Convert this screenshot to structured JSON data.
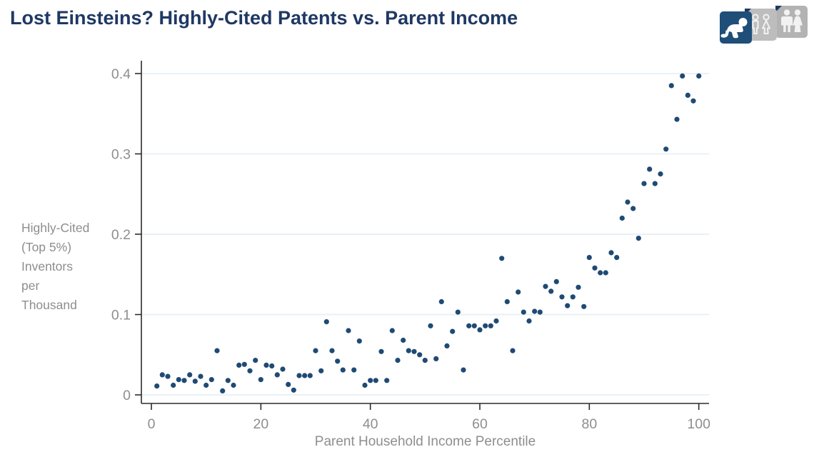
{
  "header": {
    "title": "Lost Einsteins? Highly-Cited Patents vs. Parent Income"
  },
  "toolbar": {
    "buttons": [
      {
        "id": "baby",
        "icon": "baby-icon",
        "selected": true
      },
      {
        "id": "children",
        "icon": "children-icon",
        "selected": false
      },
      {
        "id": "adults",
        "icon": "adults-icon",
        "selected": false
      }
    ]
  },
  "colors": {
    "title": "#1f3864",
    "dot": "#1f4a74",
    "axis_text": "#8e8e8e",
    "gridline": "#e9f1f6",
    "axis_line": "#2b2b2b",
    "selected_tile": "#1f4e79",
    "tile_gray": "#b5b5b5"
  },
  "chart_data": {
    "type": "scatter",
    "title": "Lost Einsteins? Highly-Cited Patents vs. Parent Income",
    "xlabel": "Parent Household Income Percentile",
    "ylabel": "Highly-Cited (Top 5%) Inventors per Thousand",
    "xlim": [
      0,
      100
    ],
    "ylim": [
      0,
      0.4
    ],
    "grid": "horizontal",
    "legend": "none",
    "x_ticks": [
      {
        "value": 0,
        "label": "0"
      },
      {
        "value": 20,
        "label": "20"
      },
      {
        "value": 40,
        "label": "40"
      },
      {
        "value": 60,
        "label": "60"
      },
      {
        "value": 80,
        "label": "80"
      },
      {
        "value": 100,
        "label": "100"
      }
    ],
    "y_ticks": [
      {
        "value": 0,
        "label": "0"
      },
      {
        "value": 0.1,
        "label": "0.1"
      },
      {
        "value": 0.2,
        "label": "0.2"
      },
      {
        "value": 0.3,
        "label": "0.3"
      },
      {
        "value": 0.4,
        "label": "0.4"
      }
    ],
    "points": [
      [
        1,
        0.011
      ],
      [
        2,
        0.025
      ],
      [
        3,
        0.023
      ],
      [
        4,
        0.012
      ],
      [
        5,
        0.019
      ],
      [
        6,
        0.018
      ],
      [
        7,
        0.025
      ],
      [
        8,
        0.017
      ],
      [
        9,
        0.023
      ],
      [
        10,
        0.012
      ],
      [
        11,
        0.019
      ],
      [
        12,
        0.055
      ],
      [
        13,
        0.005
      ],
      [
        14,
        0.018
      ],
      [
        15,
        0.012
      ],
      [
        16,
        0.037
      ],
      [
        17,
        0.038
      ],
      [
        18,
        0.03
      ],
      [
        19,
        0.043
      ],
      [
        20,
        0.019
      ],
      [
        21,
        0.037
      ],
      [
        22,
        0.036
      ],
      [
        23,
        0.025
      ],
      [
        24,
        0.032
      ],
      [
        25,
        0.013
      ],
      [
        26,
        0.006
      ],
      [
        27,
        0.024
      ],
      [
        28,
        0.024
      ],
      [
        29,
        0.024
      ],
      [
        30,
        0.055
      ],
      [
        31,
        0.03
      ],
      [
        32,
        0.091
      ],
      [
        33,
        0.055
      ],
      [
        34,
        0.042
      ],
      [
        35,
        0.031
      ],
      [
        36,
        0.08
      ],
      [
        37,
        0.031
      ],
      [
        38,
        0.067
      ],
      [
        39,
        0.012
      ],
      [
        40,
        0.018
      ],
      [
        41,
        0.018
      ],
      [
        42,
        0.054
      ],
      [
        43,
        0.018
      ],
      [
        44,
        0.08
      ],
      [
        45,
        0.043
      ],
      [
        46,
        0.068
      ],
      [
        47,
        0.055
      ],
      [
        48,
        0.054
      ],
      [
        49,
        0.05
      ],
      [
        50,
        0.043
      ],
      [
        51,
        0.086
      ],
      [
        52,
        0.045
      ],
      [
        53,
        0.116
      ],
      [
        54,
        0.061
      ],
      [
        55,
        0.079
      ],
      [
        56,
        0.103
      ],
      [
        57,
        0.031
      ],
      [
        58,
        0.086
      ],
      [
        59,
        0.086
      ],
      [
        60,
        0.081
      ],
      [
        61,
        0.086
      ],
      [
        62,
        0.086
      ],
      [
        63,
        0.092
      ],
      [
        64,
        0.17
      ],
      [
        65,
        0.116
      ],
      [
        66,
        0.055
      ],
      [
        67,
        0.128
      ],
      [
        68,
        0.103
      ],
      [
        69,
        0.092
      ],
      [
        70,
        0.104
      ],
      [
        71,
        0.103
      ],
      [
        72,
        0.135
      ],
      [
        73,
        0.129
      ],
      [
        74,
        0.141
      ],
      [
        75,
        0.122
      ],
      [
        76,
        0.111
      ],
      [
        77,
        0.122
      ],
      [
        78,
        0.134
      ],
      [
        79,
        0.11
      ],
      [
        80,
        0.171
      ],
      [
        81,
        0.158
      ],
      [
        82,
        0.152
      ],
      [
        83,
        0.152
      ],
      [
        84,
        0.177
      ],
      [
        85,
        0.171
      ],
      [
        86,
        0.22
      ],
      [
        87,
        0.24
      ],
      [
        88,
        0.232
      ],
      [
        89,
        0.195
      ],
      [
        90,
        0.263
      ],
      [
        91,
        0.281
      ],
      [
        92,
        0.263
      ],
      [
        93,
        0.275
      ],
      [
        94,
        0.306
      ],
      [
        95,
        0.385
      ],
      [
        96,
        0.343
      ],
      [
        97,
        0.397
      ],
      [
        98,
        0.373
      ],
      [
        99,
        0.366
      ],
      [
        100,
        0.397
      ]
    ]
  }
}
